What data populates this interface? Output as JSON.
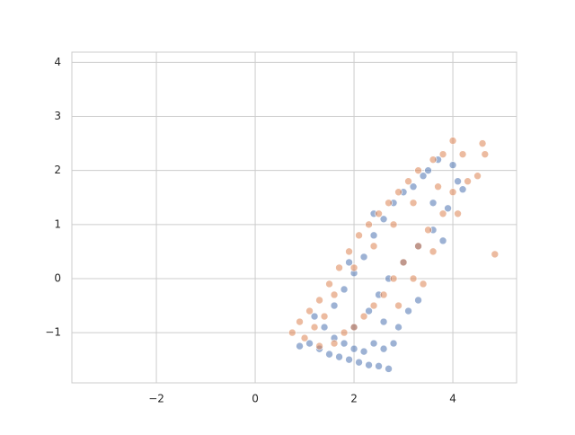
{
  "chart_data": {
    "type": "scatter",
    "xlim": [
      -3.71,
      5.29
    ],
    "ylim": [
      -1.93,
      4.19
    ],
    "xticks": [
      {
        "value": -2,
        "label": "−2"
      },
      0,
      2,
      4
    ],
    "yticks": [
      {
        "value": -1,
        "label": "−1"
      },
      0,
      1,
      2,
      3,
      4
    ],
    "grid": true,
    "series": [
      {
        "color": "#4c72b0",
        "x": [
          0.9,
          1.1,
          1.3,
          1.5,
          1.7,
          1.9,
          2.1,
          2.3,
          2.5,
          2.7,
          1.6,
          1.8,
          2.0,
          2.2,
          2.4,
          2.6,
          2.8,
          1.4,
          1.6,
          1.8,
          2.0,
          2.2,
          2.4,
          2.6,
          2.8,
          3.0,
          3.2,
          3.5,
          3.7,
          4.0,
          4.2,
          3.9,
          3.6,
          3.3,
          3.0,
          2.7,
          2.5,
          2.3,
          2.0,
          3.1,
          3.3,
          3.8,
          4.1,
          2.9,
          2.6,
          1.2,
          1.9,
          2.4,
          3.4,
          3.6
        ],
        "values": [
          -1.25,
          -1.2,
          -1.3,
          -1.4,
          -1.45,
          -1.5,
          -1.55,
          -1.6,
          -1.62,
          -1.67,
          -1.1,
          -1.2,
          -1.3,
          -1.35,
          -1.2,
          -1.3,
          -1.2,
          -0.9,
          -0.5,
          -0.2,
          0.1,
          0.4,
          0.8,
          1.1,
          1.4,
          1.6,
          1.7,
          2.0,
          2.2,
          2.1,
          1.65,
          1.3,
          0.9,
          0.6,
          0.3,
          0.0,
          -0.3,
          -0.6,
          -0.9,
          -0.6,
          -0.4,
          0.7,
          1.8,
          -0.9,
          -0.8,
          -0.7,
          0.3,
          1.2,
          1.9,
          1.4
        ]
      },
      {
        "color": "#dd8452",
        "x": [
          0.75,
          0.9,
          1.0,
          1.1,
          1.3,
          1.5,
          1.7,
          1.9,
          2.1,
          2.3,
          2.5,
          2.7,
          2.9,
          3.1,
          3.3,
          3.6,
          3.8,
          4.0,
          4.2,
          4.6,
          4.65,
          4.5,
          4.3,
          4.0,
          3.8,
          3.5,
          3.3,
          3.0,
          2.8,
          2.6,
          2.4,
          2.2,
          2.0,
          1.8,
          1.6,
          1.3,
          3.6,
          3.4,
          3.2,
          2.9,
          4.85,
          4.1,
          1.2,
          1.4,
          1.6,
          2.0,
          2.4,
          2.8,
          3.2,
          3.7
        ],
        "values": [
          -1.0,
          -0.8,
          -1.1,
          -0.6,
          -0.4,
          -0.1,
          0.2,
          0.5,
          0.8,
          1.0,
          1.2,
          1.4,
          1.6,
          1.8,
          2.0,
          2.2,
          2.3,
          2.55,
          2.3,
          2.5,
          2.3,
          1.9,
          1.8,
          1.6,
          1.2,
          0.9,
          0.6,
          0.3,
          0.0,
          -0.3,
          -0.5,
          -0.7,
          -0.9,
          -1.0,
          -1.2,
          -1.25,
          0.5,
          -0.1,
          0.0,
          -0.5,
          0.45,
          1.2,
          -0.9,
          -0.7,
          -0.3,
          0.2,
          0.6,
          1.0,
          1.4,
          1.7
        ]
      }
    ]
  }
}
